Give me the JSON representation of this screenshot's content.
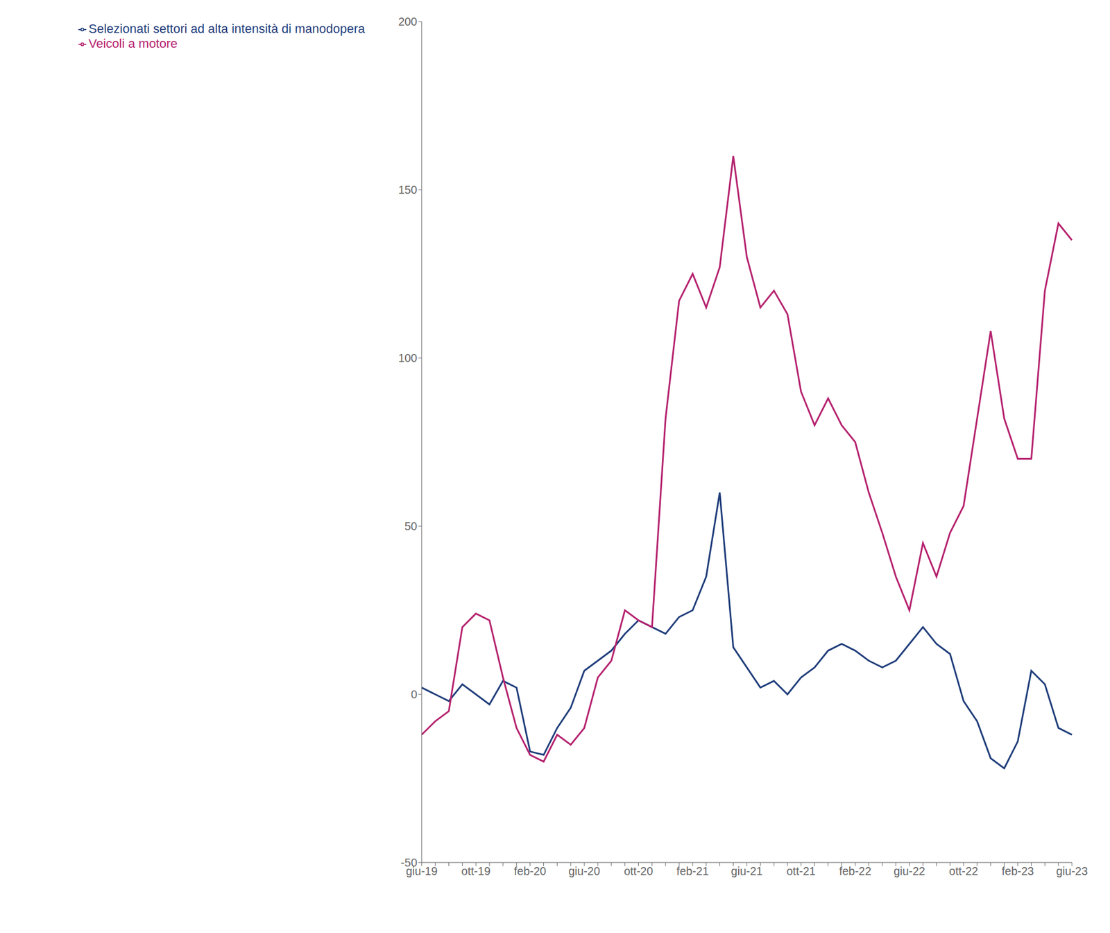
{
  "chart_data": {
    "type": "line",
    "categories": [
      "giu-19",
      null,
      null,
      null,
      "ott-19",
      null,
      null,
      null,
      "feb-20",
      null,
      null,
      null,
      "giu-20",
      null,
      null,
      null,
      "ott-20",
      null,
      null,
      null,
      "feb-21",
      null,
      null,
      null,
      "giu-21",
      null,
      null,
      null,
      "ott-21",
      null,
      null,
      null,
      "feb-22",
      null,
      null,
      null,
      "giu-22",
      null,
      null,
      null,
      "ott-22",
      null,
      null,
      null,
      "feb-23",
      null,
      null,
      null,
      "giu-23"
    ],
    "series": [
      {
        "name": "Selezionati settori ad alta intensità di manodopera",
        "color": "#1f3d7a",
        "values": [
          2,
          0,
          -2,
          3,
          0,
          -3,
          4,
          2,
          -17,
          -18,
          -10,
          -4,
          7,
          10,
          13,
          18,
          22,
          20,
          18,
          23,
          25,
          35,
          60,
          14,
          8,
          2,
          4,
          0,
          5,
          8,
          13,
          15,
          13,
          10,
          8,
          10,
          15,
          20,
          15,
          12,
          -2,
          -8,
          -19,
          -22,
          -14,
          7,
          3,
          -10,
          -12
        ]
      },
      {
        "name": "Veicoli a motore",
        "color": "#b5226e",
        "values": [
          -12,
          -8,
          -5,
          20,
          24,
          22,
          5,
          -10,
          -18,
          -20,
          -12,
          -15,
          -10,
          5,
          10,
          25,
          22,
          20,
          82,
          117,
          125,
          115,
          127,
          160,
          130,
          115,
          120,
          113,
          90,
          80,
          88,
          80,
          75,
          60,
          48,
          35,
          25,
          45,
          35,
          48,
          56,
          82,
          108,
          82,
          70,
          70,
          120,
          140,
          135
        ]
      }
    ],
    "ylim": [
      -50,
      200
    ],
    "yticks": [
      -50,
      0,
      50,
      100,
      150,
      200
    ],
    "grid": false,
    "legend": "upper left"
  }
}
